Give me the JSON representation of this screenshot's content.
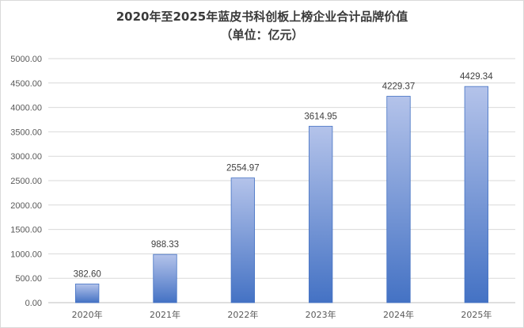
{
  "chart_data": {
    "type": "bar",
    "title": "2020年至2025年蓝皮书科创板上榜企业合计品牌价值",
    "subtitle": "（单位：亿元）",
    "categories": [
      "2020年",
      "2021年",
      "2022年",
      "2023年",
      "2024年",
      "2025年"
    ],
    "values": [
      382.6,
      988.33,
      2554.97,
      3614.95,
      4229.37,
      4429.34
    ],
    "value_labels": [
      "382.60",
      "988.33",
      "2554.97",
      "3614.95",
      "4229.37",
      "4429.34"
    ],
    "ylim": [
      0,
      5000
    ],
    "yticks": [
      0,
      500,
      1000,
      1500,
      2000,
      2500,
      3000,
      3500,
      4000,
      4500,
      5000
    ],
    "ytick_labels": [
      "0.00",
      "500.00",
      "1000.00",
      "1500.00",
      "2000.00",
      "2500.00",
      "3000.00",
      "3500.00",
      "4000.00",
      "4500.00",
      "5000.00"
    ],
    "grid": true,
    "legend": "none",
    "xlabel": "",
    "ylabel": "",
    "colors": {
      "bar_top": "#b4c3ea",
      "bar_bottom": "#4472c4",
      "bar_edge": "#4472c4",
      "grid": "#d9d9d9",
      "axis": "#bfbfbf"
    }
  }
}
